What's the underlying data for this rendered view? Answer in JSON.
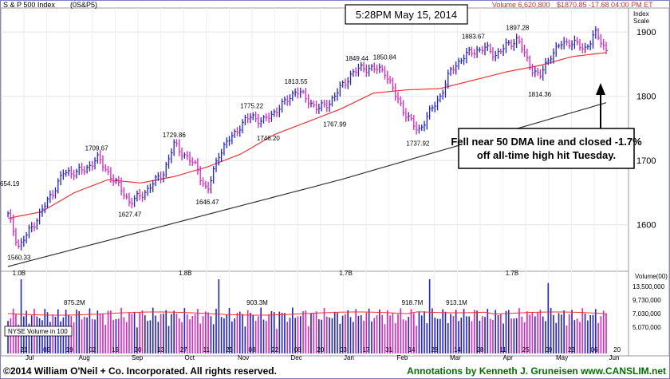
{
  "header": {
    "symbol_name": "S & P 500 Index",
    "symbol_code": "(0S&P5)",
    "volume": "Volume 6,620,800",
    "price_info": "$1870.85 -17.68 04:00 PM ET",
    "timestamp": "5:28PM May 15, 2014",
    "index_scale_line1": "Index",
    "index_scale_line2": "Scale",
    "volume_scale_label": "Volume(00)"
  },
  "annotation": {
    "line1": "Fell near 50 DMA line and closed -1.7%",
    "line2": "off all-time high hit Tuesday."
  },
  "footer": {
    "copyright": "©2014 William O'Neil + Co. Incorporated. All rights reserved.",
    "credit": "Annotations by Kenneth J. Gruneisen www.CANSLIM.net"
  },
  "colors": {
    "up_bar": "#2020e0",
    "down_bar": "#e020c0",
    "ma50": "#ee3333",
    "ma200": "#333333",
    "footer_text": "#007000",
    "header_red": "#cc3333",
    "accent_frame": "#8080c0"
  },
  "chart_data": {
    "type": "ohlc",
    "price_axis": {
      "ticks": [
        1600,
        1700,
        1800,
        1900
      ],
      "ylim": [
        1530,
        1935
      ]
    },
    "volume_axis": {
      "ticks": [
        "13,500,000",
        "9,730,000",
        "7,030,000",
        "5,070,000"
      ]
    },
    "month_labels": [
      "Jul",
      "Aug",
      "Sep",
      "Oct",
      "Nov",
      "Dec",
      "Jan",
      "Feb",
      "Mar",
      "Apr",
      "May",
      "Jun"
    ],
    "day_labels": [
      "21",
      "05",
      "19",
      "02",
      "16",
      "30",
      "13",
      "27",
      "11",
      "25",
      "08",
      "22",
      "06",
      "20",
      "03",
      "17",
      "31",
      "14",
      "28",
      "14",
      "28",
      "11",
      "25",
      "09",
      "23",
      "06",
      "20"
    ],
    "price_keypoints": [
      {
        "week": 0,
        "price": 1615
      },
      {
        "week": 1,
        "price": 1565
      },
      {
        "week": 3,
        "price": 1620
      },
      {
        "week": 5,
        "price": 1680
      },
      {
        "week": 7,
        "price": 1685
      },
      {
        "week": 8,
        "price": 1705
      },
      {
        "week": 10,
        "price": 1660
      },
      {
        "week": 11,
        "price": 1635
      },
      {
        "week": 12,
        "price": 1645
      },
      {
        "week": 14,
        "price": 1680
      },
      {
        "week": 15,
        "price": 1725
      },
      {
        "week": 17,
        "price": 1690
      },
      {
        "week": 18,
        "price": 1650
      },
      {
        "week": 19,
        "price": 1710
      },
      {
        "week": 21,
        "price": 1755
      },
      {
        "week": 22,
        "price": 1770
      },
      {
        "week": 23,
        "price": 1760
      },
      {
        "week": 25,
        "price": 1790
      },
      {
        "week": 26,
        "price": 1810
      },
      {
        "week": 28,
        "price": 1780
      },
      {
        "week": 29,
        "price": 1790
      },
      {
        "week": 31,
        "price": 1835
      },
      {
        "week": 32,
        "price": 1845
      },
      {
        "week": 34,
        "price": 1840
      },
      {
        "week": 35,
        "price": 1800
      },
      {
        "week": 36,
        "price": 1770
      },
      {
        "week": 37,
        "price": 1745
      },
      {
        "week": 39,
        "price": 1800
      },
      {
        "week": 40,
        "price": 1840
      },
      {
        "week": 41,
        "price": 1860
      },
      {
        "week": 42,
        "price": 1870
      },
      {
        "week": 43,
        "price": 1875
      },
      {
        "week": 44,
        "price": 1865
      },
      {
        "week": 45,
        "price": 1878
      },
      {
        "week": 46,
        "price": 1890
      },
      {
        "week": 47,
        "price": 1850
      },
      {
        "week": 48,
        "price": 1830
      },
      {
        "week": 49,
        "price": 1865
      },
      {
        "week": 50,
        "price": 1882
      },
      {
        "week": 51,
        "price": 1885
      },
      {
        "week": 52,
        "price": 1872
      },
      {
        "week": 53,
        "price": 1898
      },
      {
        "week": 54,
        "price": 1872
      }
    ],
    "ma50_keypoints": [
      {
        "week": 0,
        "price": 1610
      },
      {
        "week": 3,
        "price": 1620
      },
      {
        "week": 6,
        "price": 1650
      },
      {
        "week": 9,
        "price": 1670
      },
      {
        "week": 12,
        "price": 1665
      },
      {
        "week": 15,
        "price": 1675
      },
      {
        "week": 18,
        "price": 1690
      },
      {
        "week": 21,
        "price": 1710
      },
      {
        "week": 24,
        "price": 1740
      },
      {
        "week": 27,
        "price": 1760
      },
      {
        "week": 30,
        "price": 1780
      },
      {
        "week": 33,
        "price": 1805
      },
      {
        "week": 36,
        "price": 1810
      },
      {
        "week": 39,
        "price": 1812
      },
      {
        "week": 42,
        "price": 1825
      },
      {
        "week": 45,
        "price": 1838
      },
      {
        "week": 48,
        "price": 1848
      },
      {
        "week": 51,
        "price": 1862
      },
      {
        "week": 54,
        "price": 1868
      }
    ],
    "ma200_keypoints": [
      {
        "week": 0,
        "price": 1535
      },
      {
        "week": 10,
        "price": 1580
      },
      {
        "week": 20,
        "price": 1625
      },
      {
        "week": 30,
        "price": 1670
      },
      {
        "week": 40,
        "price": 1720
      },
      {
        "week": 50,
        "price": 1770
      },
      {
        "week": 54,
        "price": 1790
      }
    ],
    "price_labels": [
      {
        "text": "1654.19",
        "week": 0.0,
        "price": 1654.19
      },
      {
        "text": "1560.33",
        "week": 1.0,
        "price": 1560.33
      },
      {
        "text": "1709.67",
        "week": 8.0,
        "price": 1709.67
      },
      {
        "text": "1627.47",
        "week": 11.0,
        "price": 1627.47
      },
      {
        "text": "1729.86",
        "week": 15.0,
        "price": 1729.86
      },
      {
        "text": "1646.47",
        "week": 18.0,
        "price": 1646.47
      },
      {
        "text": "1775.22",
        "week": 22.0,
        "price": 1775.22
      },
      {
        "text": "1746.20",
        "week": 23.5,
        "price": 1746.2
      },
      {
        "text": "1813.55",
        "week": 26.0,
        "price": 1813.55
      },
      {
        "text": "1767.99",
        "week": 29.5,
        "price": 1767.99
      },
      {
        "text": "1849.44",
        "week": 31.5,
        "price": 1849.44
      },
      {
        "text": "1850.84",
        "week": 34.0,
        "price": 1850.84
      },
      {
        "text": "1737.92",
        "week": 37.0,
        "price": 1737.92
      },
      {
        "text": "1883.67",
        "week": 42.0,
        "price": 1883.67
      },
      {
        "text": "1897.28",
        "week": 46.0,
        "price": 1897.28
      },
      {
        "text": "1814.36",
        "week": 48.0,
        "price": 1814.36
      }
    ],
    "volume_labels": [
      {
        "text": "1.0B",
        "week": 1.0
      },
      {
        "text": "875.2M",
        "week": 6.0
      },
      {
        "text": "1.8B",
        "week": 16.0
      },
      {
        "text": "903.3M",
        "week": 22.5
      },
      {
        "text": "1.7B",
        "week": 30.5
      },
      {
        "text": "918.7M",
        "week": 36.5
      },
      {
        "text": "913.1M",
        "week": 40.5
      },
      {
        "text": "1.7B",
        "week": 45.5
      }
    ],
    "volume_legend": "NYSE Volume in 100"
  }
}
